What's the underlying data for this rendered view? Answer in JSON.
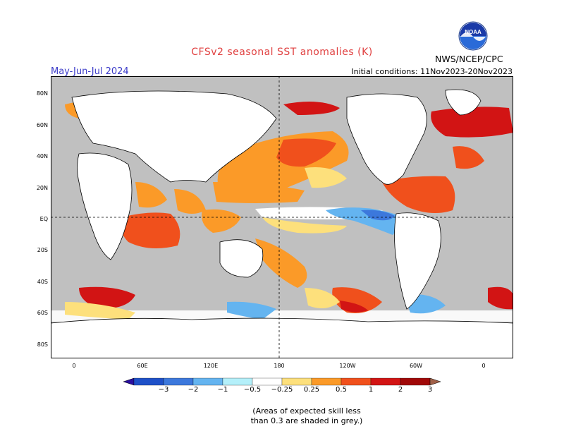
{
  "header": {
    "title": "CFSv2 seasonal SST anomalies (K)",
    "season": "May-Jun-Jul 2024",
    "initial_conditions": "Initial conditions: 11Nov2023-20Nov2023",
    "agency": "NWS/NCEP/CPC",
    "logo_text": "NOAA"
  },
  "map": {
    "lat_labels": [
      "80N",
      "60N",
      "40N",
      "20N",
      "EQ",
      "20S",
      "40S",
      "60S",
      "80S"
    ],
    "lon_labels": [
      "0",
      "60E",
      "120E",
      "180",
      "120W",
      "60W",
      "0"
    ],
    "colors": {
      "ocean_skill_grey": "#c0c0c0",
      "neutral": "#ffffff",
      "positive_025": "#fde07c",
      "positive_05": "#fb9a28",
      "positive_1": "#f0501c",
      "positive_2": "#d21414",
      "positive_3": "#a00808",
      "negative_025": "#b4f0fa",
      "negative_05": "#64b4f0",
      "negative_1": "#3c78dc",
      "negative_2": "#1e50c8"
    }
  },
  "colorbar": {
    "labels": [
      "−3",
      "−2",
      "−1",
      "−0.5",
      "−0.25",
      "0.25",
      "0.5",
      "1",
      "2",
      "3"
    ],
    "colors": [
      "#2a0fa0",
      "#1e50c8",
      "#3c78dc",
      "#64b4f0",
      "#b4f0fa",
      "#ffffff",
      "#fde07c",
      "#fb9a28",
      "#f0501c",
      "#d21414",
      "#a00808",
      "#a06048"
    ]
  },
  "note": {
    "line1": "(Areas of expected skill less",
    "line2": "than 0.3 are shaded in grey.)"
  }
}
